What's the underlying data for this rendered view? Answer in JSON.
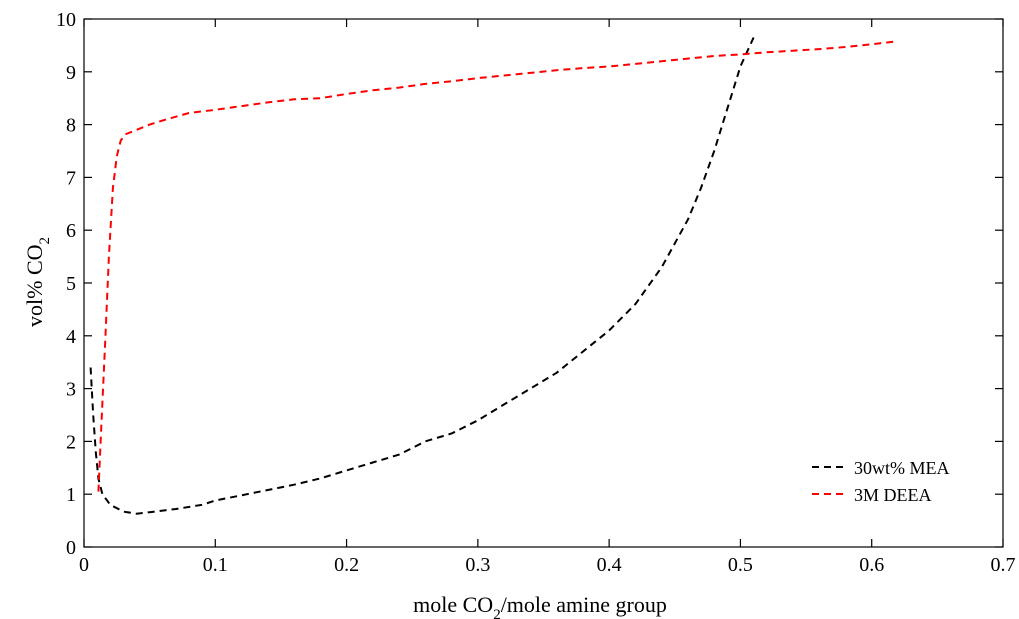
{
  "chart_data": {
    "type": "line",
    "xlabel_main": "mole CO",
    "xlabel_sub": "2",
    "xlabel_tail": "/mole amine group",
    "ylabel_main": "vol% CO",
    "ylabel_sub": "2",
    "xlim": [
      0,
      0.7
    ],
    "ylim": [
      0,
      10
    ],
    "xticks": [
      0,
      0.1,
      0.2,
      0.3,
      0.4,
      0.5,
      0.6,
      0.7
    ],
    "xtick_labels": [
      "0",
      "0.1",
      "0.2",
      "0.3",
      "0.4",
      "0.5",
      "0.6",
      "0.7"
    ],
    "yticks": [
      0,
      1,
      2,
      3,
      4,
      5,
      6,
      7,
      8,
      9,
      10
    ],
    "ytick_labels": [
      "0",
      "1",
      "2",
      "3",
      "4",
      "5",
      "6",
      "7",
      "8",
      "9",
      "10"
    ],
    "grid": false,
    "legend_position": "bottom-right",
    "series": [
      {
        "name": "30wt% MEA",
        "color": "#000000",
        "dash": "dashed",
        "x": [
          0.005,
          0.007,
          0.009,
          0.011,
          0.014,
          0.02,
          0.03,
          0.04,
          0.05,
          0.07,
          0.09,
          0.1,
          0.12,
          0.14,
          0.16,
          0.18,
          0.2,
          0.22,
          0.24,
          0.26,
          0.28,
          0.3,
          0.32,
          0.34,
          0.36,
          0.38,
          0.4,
          0.42,
          0.44,
          0.46,
          0.47,
          0.48,
          0.49,
          0.5,
          0.51
        ],
        "y": [
          3.4,
          2.5,
          1.8,
          1.3,
          1.0,
          0.8,
          0.67,
          0.63,
          0.66,
          0.72,
          0.8,
          0.88,
          0.98,
          1.08,
          1.18,
          1.3,
          1.45,
          1.6,
          1.75,
          2.0,
          2.15,
          2.4,
          2.7,
          3.0,
          3.3,
          3.7,
          4.1,
          4.6,
          5.3,
          6.2,
          6.8,
          7.5,
          8.3,
          9.1,
          9.65
        ]
      },
      {
        "name": "3M DEEA",
        "color": "#ff0000",
        "dash": "dashed",
        "x": [
          0.011,
          0.013,
          0.016,
          0.019,
          0.022,
          0.025,
          0.028,
          0.032,
          0.04,
          0.05,
          0.06,
          0.07,
          0.08,
          0.1,
          0.12,
          0.14,
          0.16,
          0.18,
          0.2,
          0.22,
          0.24,
          0.26,
          0.28,
          0.3,
          0.32,
          0.34,
          0.36,
          0.38,
          0.4,
          0.42,
          0.44,
          0.46,
          0.48,
          0.5,
          0.52,
          0.54,
          0.56,
          0.58,
          0.6,
          0.62
        ],
        "y": [
          1.05,
          2.2,
          3.8,
          5.5,
          6.8,
          7.4,
          7.7,
          7.82,
          7.9,
          8.0,
          8.08,
          8.15,
          8.22,
          8.28,
          8.35,
          8.42,
          8.48,
          8.5,
          8.58,
          8.65,
          8.7,
          8.77,
          8.82,
          8.88,
          8.93,
          8.98,
          9.03,
          9.07,
          9.1,
          9.15,
          9.2,
          9.25,
          9.3,
          9.33,
          9.37,
          9.4,
          9.43,
          9.47,
          9.52,
          9.58
        ]
      }
    ]
  }
}
